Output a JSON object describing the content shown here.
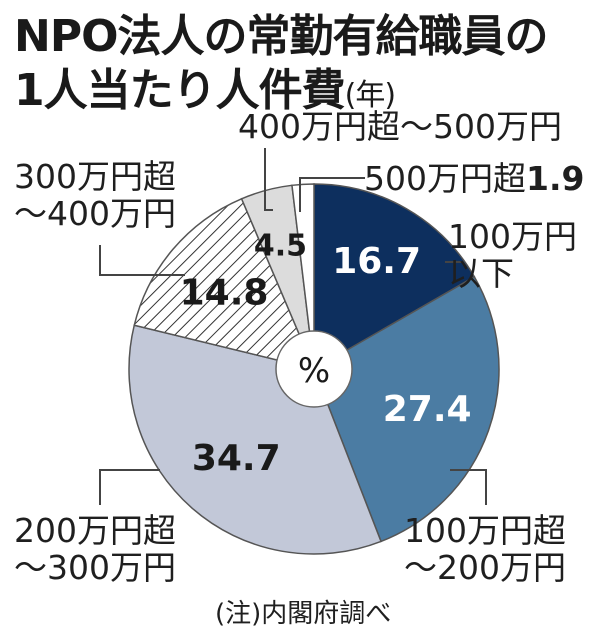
{
  "title_line1": "NPO法人の常勤有給職員の",
  "title_line2": "1人当たり人件費",
  "title_unit": "(年)",
  "note": "(注)内閣府調べ",
  "center_label": "%",
  "chart_data": {
    "type": "pie",
    "title": "NPO法人の常勤有給職員の1人当たり人件費(年)",
    "unit": "%",
    "series": [
      {
        "category": "100万円以下",
        "value": 16.7,
        "color": "#0d2f5e",
        "value_color": "#ffffff",
        "pattern": "solid"
      },
      {
        "category": "100万円超～200万円",
        "value": 27.4,
        "color": "#4b7ca3",
        "value_color": "#ffffff",
        "pattern": "solid"
      },
      {
        "category": "200万円超～300万円",
        "value": 34.7,
        "color": "#c2c8d8",
        "value_color": "#1a1a1a",
        "pattern": "solid"
      },
      {
        "category": "300万円超～400万円",
        "value": 14.8,
        "color": "#ffffff",
        "value_color": "#1a1a1a",
        "pattern": "hatch"
      },
      {
        "category": "400万円超～500万円",
        "value": 4.5,
        "color": "#dcdcdc",
        "value_color": "#1a1a1a",
        "pattern": "solid"
      },
      {
        "category": "500万円超",
        "value": 1.9,
        "color": "#ffffff",
        "value_color": "#1a1a1a",
        "pattern": "solid"
      }
    ],
    "labels": {
      "cat_0": [
        "100万円",
        "以下"
      ],
      "cat_1": [
        "100万円超",
        "～200万円"
      ],
      "cat_2": [
        "200万円超",
        "～300万円"
      ],
      "cat_3": [
        "300万円超",
        "～400万円"
      ],
      "cat_4": [
        "400万円超～500万円"
      ],
      "cat_5": [
        "500万円超"
      ]
    }
  }
}
